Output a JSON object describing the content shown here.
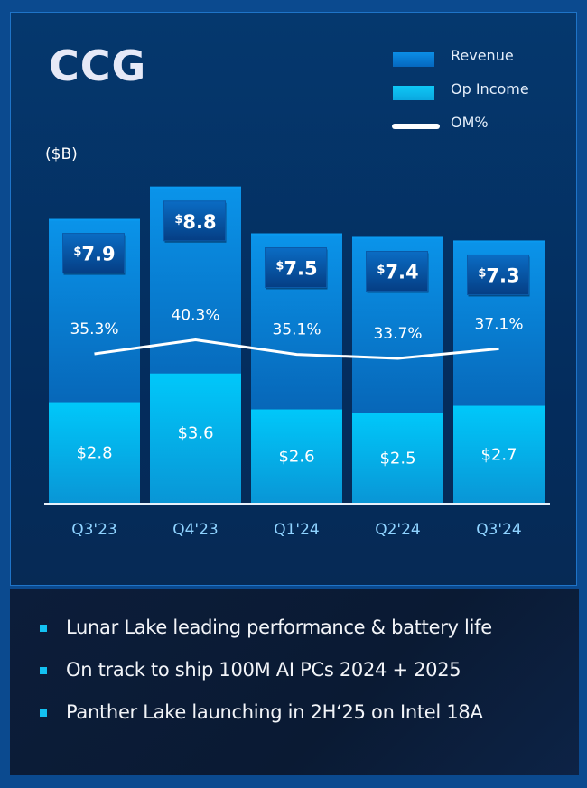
{
  "title": "CCG",
  "unit_label": "($B)",
  "legend": [
    {
      "label": "Revenue",
      "color": "#0a83d8"
    },
    {
      "label": "Op Income",
      "color": "#0bbdf0"
    },
    {
      "label": "OM%",
      "color": "#ffffff"
    }
  ],
  "chart_data": {
    "type": "bar",
    "categories": [
      "Q3'23",
      "Q4'23",
      "Q1'24",
      "Q2'24",
      "Q3'24"
    ],
    "series": [
      {
        "name": "Revenue",
        "values": [
          7.9,
          8.8,
          7.5,
          7.4,
          7.3
        ],
        "labels": [
          "7.9",
          "8.8",
          "7.5",
          "7.4",
          "7.3"
        ]
      },
      {
        "name": "Op Income",
        "values": [
          2.8,
          3.6,
          2.6,
          2.5,
          2.7
        ],
        "labels": [
          "$2.8",
          "$3.6",
          "$2.6",
          "$2.5",
          "$2.7"
        ]
      },
      {
        "name": "OM%",
        "values": [
          35.3,
          40.3,
          35.1,
          33.7,
          37.1
        ],
        "labels": [
          "35.3%",
          "40.3%",
          "35.1%",
          "33.7%",
          "37.1%"
        ]
      }
    ],
    "ylabel": "($B)",
    "grid": false,
    "legend_position": "top-right"
  },
  "bullets": [
    "Lunar Lake leading performance & battery life",
    "On track to ship 100M AI PCs 2024 + 2025",
    "Panther Lake launching in 2H‘25 on Intel 18A"
  ]
}
